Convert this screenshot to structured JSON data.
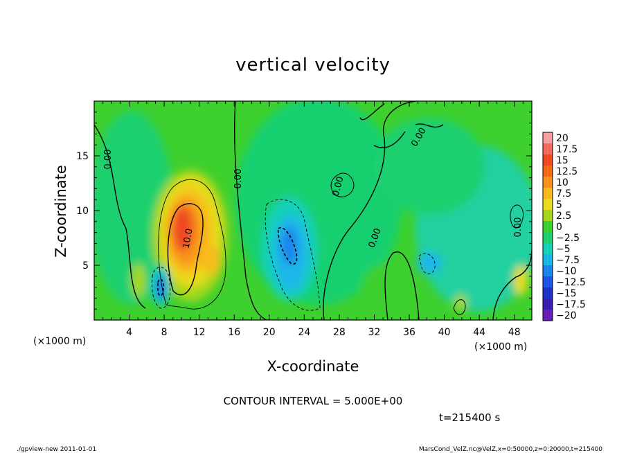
{
  "chart_data": {
    "type": "heatmap",
    "title": "vertical velocity",
    "xlabel": "X-coordinate",
    "ylabel": "Z-coordinate",
    "x_unit_left": "(×1000 m)",
    "x_unit_right": "(×1000 m)",
    "xlim": [
      0,
      50
    ],
    "ylim": [
      0,
      20
    ],
    "x_ticks": [
      4,
      8,
      12,
      16,
      20,
      24,
      28,
      32,
      36,
      40,
      44,
      48
    ],
    "x_tick_labels": [
      "4",
      "8",
      "12",
      "16",
      "20",
      "24",
      "28",
      "32",
      "36",
      "40",
      "44",
      "48"
    ],
    "y_ticks": [
      5,
      10,
      15
    ],
    "y_tick_labels": [
      "5",
      "10",
      "15"
    ],
    "colorbar": {
      "levels": [
        20,
        17.5,
        15,
        12.5,
        10,
        7.5,
        5,
        2.5,
        0,
        -2.5,
        -5,
        -7.5,
        -10,
        -12.5,
        -15,
        -17.5,
        -20
      ],
      "labels": [
        "20",
        "17.5",
        "15",
        "12.5",
        "10",
        "7.5",
        "5",
        "2.5",
        "0",
        "−2.5",
        "−5",
        "−7.5",
        "−10",
        "−12.5",
        "−15",
        "−17.5",
        "−20"
      ],
      "colors": [
        "#f7a0a0",
        "#f36a5e",
        "#f04a22",
        "#f26a14",
        "#f7931c",
        "#f8bb1e",
        "#e8dc1f",
        "#a6d71c",
        "#3ed02e",
        "#1fd070",
        "#18d0b8",
        "#1ab8e8",
        "#1c85ec",
        "#1e55e6",
        "#2033c8",
        "#3a1fb0",
        "#6a1fb8"
      ]
    },
    "contour_labels": [
      "0.00",
      "0.00",
      "10.0",
      "0.00",
      "0.00",
      "0.00",
      "0.00"
    ],
    "contour_interval_text": "CONTOUR INTERVAL = 5.000E+00",
    "time_text": "t=215400 s",
    "grid": false
  },
  "footer": {
    "left": "./gpview-new  2011-01-01",
    "right": "MarsCond_VelZ.nc@VelZ,x=0:50000,z=0:20000,t=215400"
  }
}
